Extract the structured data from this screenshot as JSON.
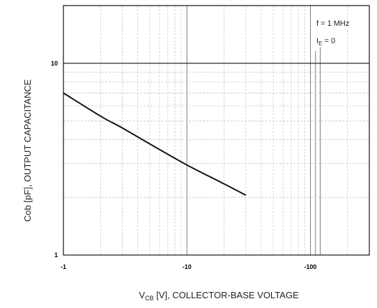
{
  "chart_data": {
    "type": "line",
    "xscale": "log",
    "yscale": "log",
    "xlim": [
      -1,
      -300
    ],
    "ylim": [
      1,
      20
    ],
    "x_ticks": [
      {
        "value": -1,
        "label": "-1"
      },
      {
        "value": -10,
        "label": "-10"
      },
      {
        "value": -100,
        "label": "-100"
      }
    ],
    "y_ticks": [
      {
        "value": 1,
        "label": "1"
      },
      {
        "value": 10,
        "label": "10"
      }
    ],
    "xlabel": {
      "base": "V",
      "sub": "CB",
      "rest": " [V], COLLECTOR-BASE VOLTAGE"
    },
    "ylabel": "Cob [pF], OUTPUT CAPACITANCE",
    "annotations": {
      "line1": "f = 1 MHz",
      "line2_base": "I",
      "line2_sub": "E",
      "line2_rest": " = 0"
    },
    "grid": true,
    "series": [
      {
        "x": [
          -1,
          -2,
          -3,
          -5,
          -10,
          -20,
          -30
        ],
        "y": [
          7.0,
          5.3,
          4.6,
          3.8,
          2.95,
          2.35,
          2.05
        ]
      }
    ]
  },
  "colors": {
    "curve": "#111111",
    "grid_major": "#7a7a7a",
    "grid_minor": "#c8c8c8",
    "frame": "#111111"
  }
}
